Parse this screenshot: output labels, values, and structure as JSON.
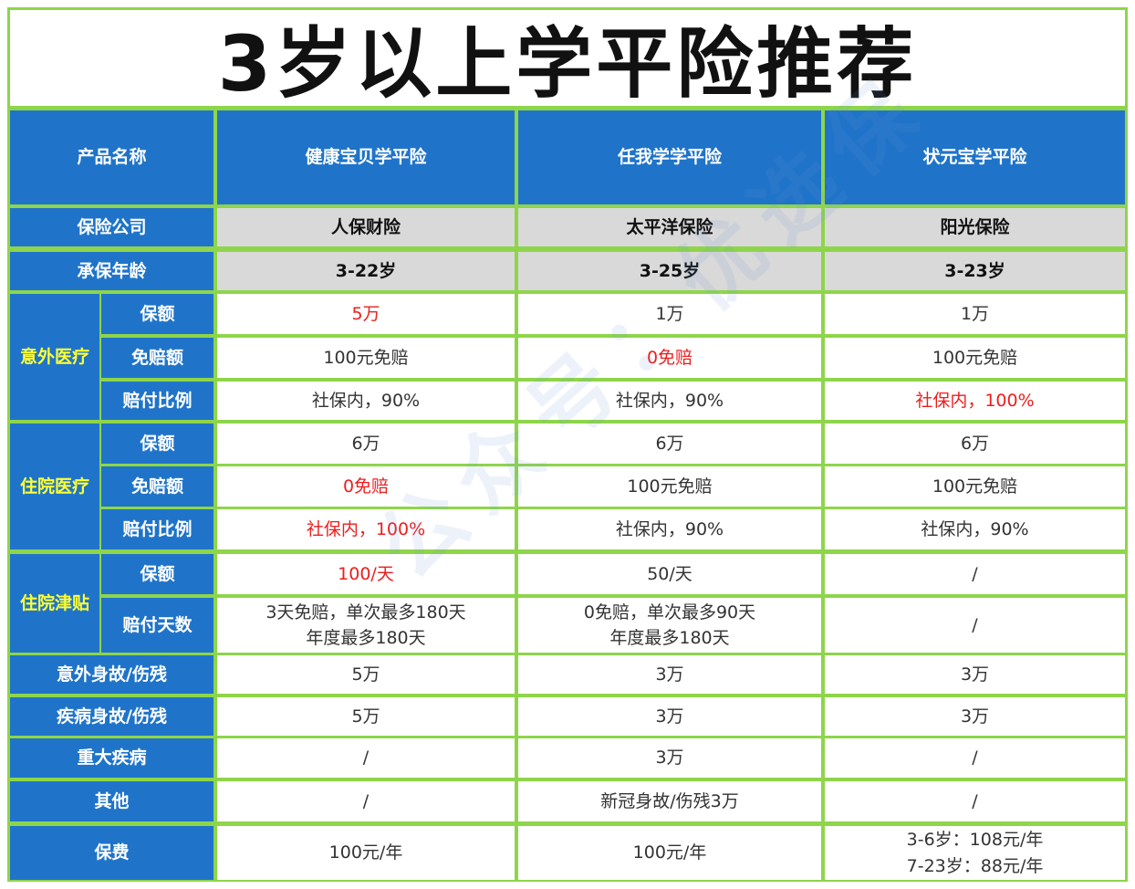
{
  "title": "3岁以上学平险推荐",
  "watermark": "公众号：优选保",
  "header": {
    "label": "产品名称",
    "products": [
      "健康宝贝学平险",
      "任我学学平险",
      "状元宝学平险"
    ]
  },
  "info_rows": [
    {
      "label": "保险公司",
      "values": [
        "人保财险",
        "太平洋保险",
        "阳光保险"
      ]
    },
    {
      "label": "承保年龄",
      "values": [
        "3-22岁",
        "3-25岁",
        "3-23岁"
      ]
    }
  ],
  "groups": [
    {
      "category": "意外医疗",
      "rows": [
        {
          "label": "保额",
          "values": [
            "5万",
            "1万",
            "1万"
          ]
        },
        {
          "label": "免赔额",
          "values": [
            "100元免赔",
            "0免赔",
            "100元免赔"
          ]
        },
        {
          "label": "赔付比例",
          "values": [
            "社保内，90%",
            "社保内，90%",
            "社保内，100%"
          ]
        }
      ]
    },
    {
      "category": "住院医疗",
      "rows": [
        {
          "label": "保额",
          "values": [
            "6万",
            "6万",
            "6万"
          ]
        },
        {
          "label": "免赔额",
          "values": [
            "0免赔",
            "100元免赔",
            "100元免赔"
          ]
        },
        {
          "label": "赔付比例",
          "values": [
            "社保内，100%",
            "社保内，90%",
            "社保内，90%"
          ]
        }
      ]
    },
    {
      "category": "住院津贴",
      "rows": [
        {
          "label": "保额",
          "values": [
            "100/天",
            "50/天",
            "/"
          ]
        },
        {
          "label": "赔付天数",
          "values": [
            [
              "3天免赔，单次最多180天",
              "年度最多180天"
            ],
            [
              "0免赔，单次最多90天",
              "年度最多180天"
            ],
            [
              "/"
            ]
          ]
        }
      ]
    }
  ],
  "single_rows": [
    {
      "label": "意外身故/伤残",
      "values": [
        "5万",
        "3万",
        "3万"
      ]
    },
    {
      "label": "疾病身故/伤残",
      "values": [
        "5万",
        "3万",
        "3万"
      ]
    },
    {
      "label": "重大疾病",
      "values": [
        "/",
        "3万",
        "/"
      ]
    },
    {
      "label": "其他",
      "values": [
        "/",
        "新冠身故/伤残3万",
        "/"
      ]
    },
    {
      "label": "保费",
      "values": [
        [
          "100元/年"
        ],
        [
          "100元/年"
        ],
        [
          "3-6岁：108元/年",
          "7-23岁：88元/年"
        ]
      ]
    }
  ],
  "highlight_color": "#ee1d1d",
  "header_color": "#1f74c9",
  "border_color": "#8ed54a"
}
